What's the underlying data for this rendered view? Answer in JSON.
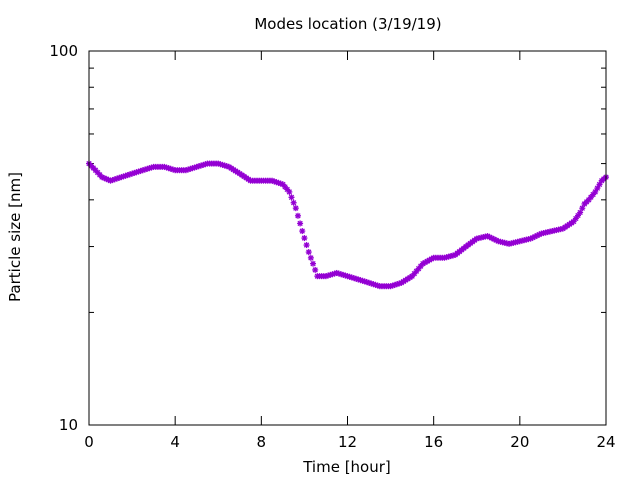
{
  "chart_data": {
    "type": "scatter",
    "title": "Modes location (3/19/19)",
    "xlabel": "Time [hour]",
    "ylabel": "Particle size [nm]",
    "xlim": [
      0,
      24
    ],
    "ylim": [
      10,
      100
    ],
    "yscale": "log",
    "grid": false,
    "legend": "none",
    "x_ticks": [
      {
        "value": 0,
        "label": "0"
      },
      {
        "value": 4,
        "label": "4"
      },
      {
        "value": 8,
        "label": "8"
      },
      {
        "value": 12,
        "label": "12"
      },
      {
        "value": 16,
        "label": "16"
      },
      {
        "value": 20,
        "label": "20"
      },
      {
        "value": 24,
        "label": "24"
      }
    ],
    "y_ticks": [
      {
        "value": 10,
        "label": "10"
      },
      {
        "value": 100,
        "label": "100"
      }
    ],
    "marker_color": "#9400D3",
    "series": [
      {
        "x": [
          0,
          0.3,
          0.6,
          1.0,
          1.5,
          2.0,
          2.5,
          3.0,
          3.5,
          4.0,
          4.5,
          5.0,
          5.5,
          6.0,
          6.5,
          7.0,
          7.5,
          8.0,
          8.5,
          9.0,
          9.3,
          9.6,
          9.9,
          10.2,
          10.4,
          10.6,
          11.0,
          11.5,
          12.0,
          12.5,
          13.0,
          13.5,
          14.0,
          14.5,
          15.0,
          15.5,
          16.0,
          16.5,
          17.0,
          17.5,
          18.0,
          18.5,
          19.0,
          19.5,
          20.0,
          20.5,
          21.0,
          21.5,
          22.0,
          22.5,
          22.8,
          23.0,
          23.2,
          23.5,
          23.8,
          24.0
        ],
        "y": [
          50,
          48,
          46,
          45,
          46,
          47,
          48,
          49,
          49,
          48,
          48,
          49,
          50,
          50,
          49,
          47,
          45,
          45,
          45,
          44,
          42,
          38,
          33,
          29,
          27,
          25,
          25,
          25.5,
          25,
          24.5,
          24,
          23.5,
          23.5,
          24,
          25,
          27,
          28,
          28,
          28.5,
          30,
          31.5,
          32,
          31,
          30.5,
          31,
          31.5,
          32.5,
          33,
          33.5,
          35,
          37,
          39,
          40,
          42,
          45,
          46
        ]
      }
    ]
  }
}
